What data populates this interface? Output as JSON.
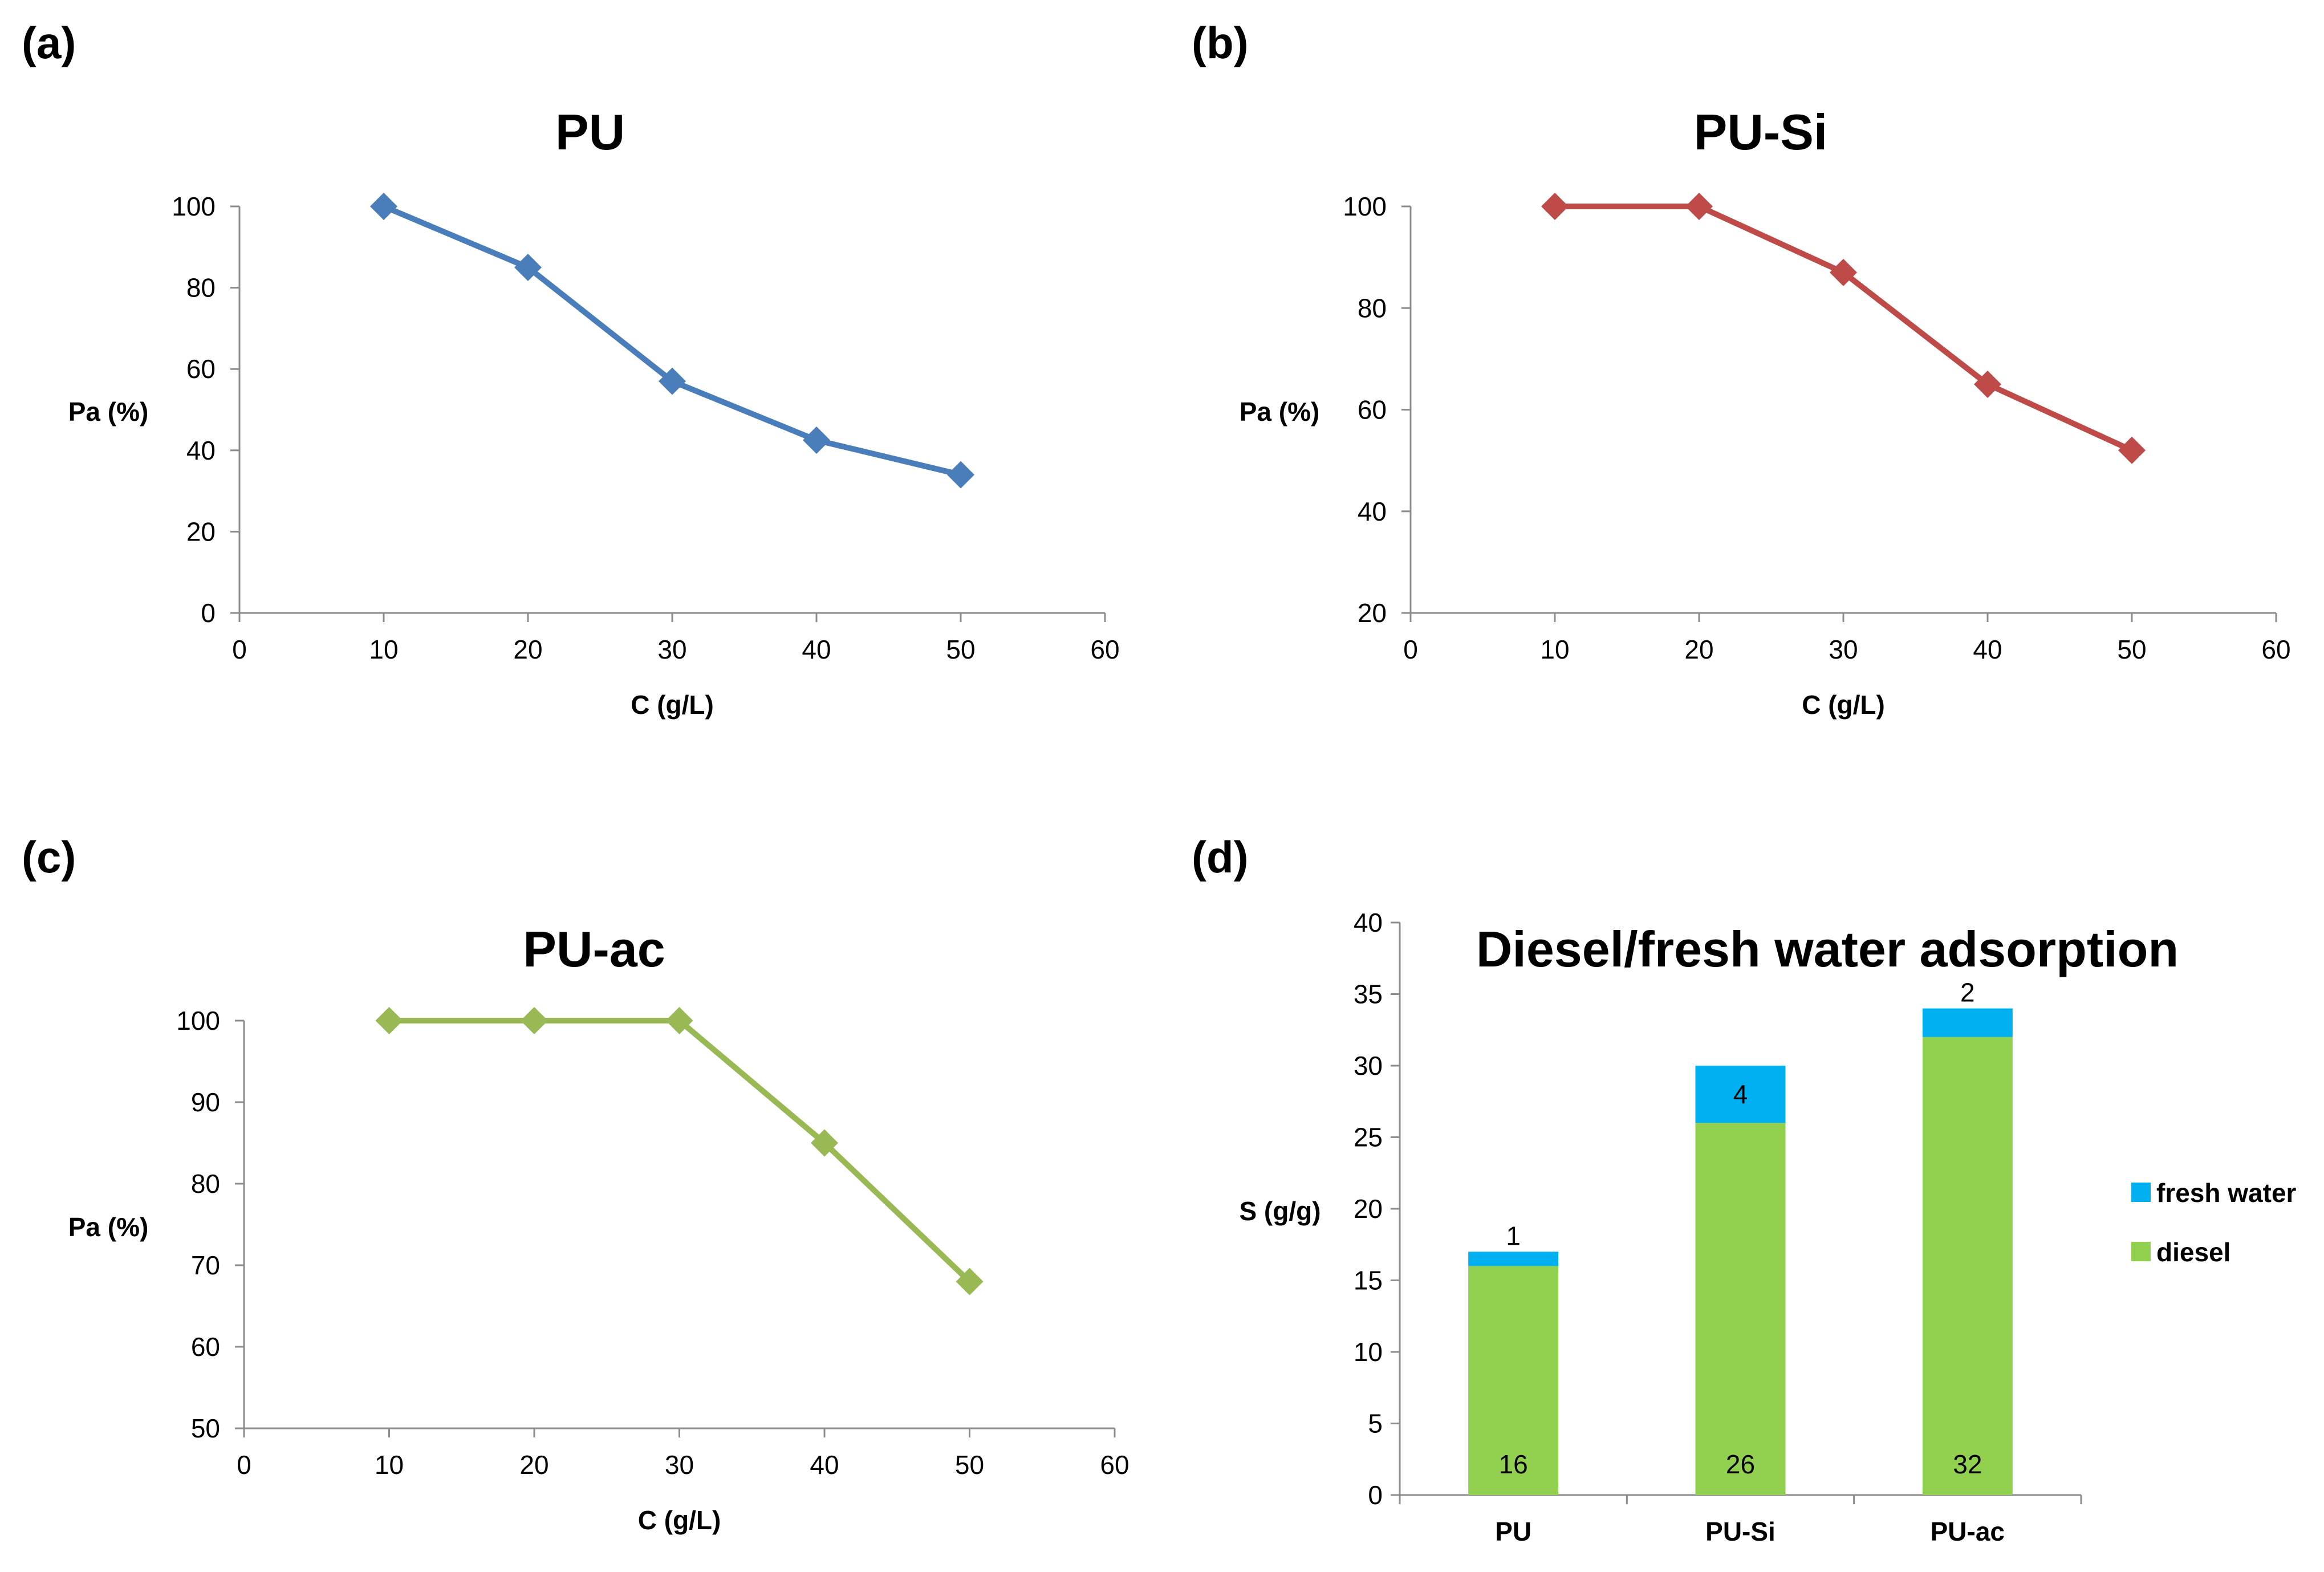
{
  "figure": {
    "panels": [
      {
        "letter": "(a)",
        "title": "PU"
      },
      {
        "letter": "(b)",
        "title": "PU-Si"
      },
      {
        "letter": "(c)",
        "title": "PU-ac"
      },
      {
        "letter": "(d)",
        "title": "Diesel/fresh water adsorption"
      }
    ]
  },
  "colors": {
    "pu": "#4a7ebb",
    "pu_si": "#be4b48",
    "pu_ac": "#98b954",
    "diesel": "#92d050",
    "fresh_water": "#00b0f0",
    "axis": "#8c8c8c"
  },
  "chart_data": [
    {
      "type": "line",
      "title": "PU",
      "xlabel": "C (g/L)",
      "ylabel": "Pa (%)",
      "x": [
        10,
        20,
        30,
        40,
        50
      ],
      "y": [
        100,
        85,
        57,
        42.5,
        34
      ],
      "xlim": [
        0,
        60
      ],
      "xticks": [
        0,
        10,
        20,
        30,
        40,
        50,
        60
      ],
      "ylim": [
        0,
        100
      ],
      "yticks": [
        0,
        20,
        40,
        60,
        80,
        100
      ],
      "marker": "diamond"
    },
    {
      "type": "line",
      "title": "PU-Si",
      "xlabel": "C (g/L)",
      "ylabel": "Pa (%)",
      "x": [
        10,
        20,
        30,
        40,
        50
      ],
      "y": [
        100,
        100,
        87,
        65,
        52
      ],
      "xlim": [
        0,
        60
      ],
      "xticks": [
        0,
        10,
        20,
        30,
        40,
        50,
        60
      ],
      "ylim": [
        20,
        100
      ],
      "yticks": [
        20,
        40,
        60,
        80,
        100
      ],
      "marker": "diamond"
    },
    {
      "type": "line",
      "title": "PU-ac",
      "xlabel": "C (g/L)",
      "ylabel": "Pa (%)",
      "x": [
        10,
        20,
        30,
        40,
        50
      ],
      "y": [
        100,
        100,
        100,
        85,
        68
      ],
      "xlim": [
        0,
        60
      ],
      "xticks": [
        0,
        10,
        20,
        30,
        40,
        50,
        60
      ],
      "ylim": [
        50,
        100
      ],
      "yticks": [
        50,
        60,
        70,
        80,
        90,
        100
      ],
      "marker": "diamond"
    },
    {
      "type": "bar",
      "stacked": true,
      "title": "Diesel/fresh water adsorption",
      "xlabel": "",
      "ylabel": "S (g/g)",
      "categories": [
        "PU",
        "PU-Si",
        "PU-ac"
      ],
      "series": [
        {
          "name": "diesel",
          "values": [
            16,
            26,
            32
          ]
        },
        {
          "name": "fresh water",
          "values": [
            1,
            4,
            2
          ]
        }
      ],
      "ylim": [
        0,
        40
      ],
      "yticks": [
        0,
        5,
        10,
        15,
        20,
        25,
        30,
        35,
        40
      ],
      "legend": [
        "fresh water",
        "diesel"
      ],
      "legend_position": "right"
    }
  ]
}
